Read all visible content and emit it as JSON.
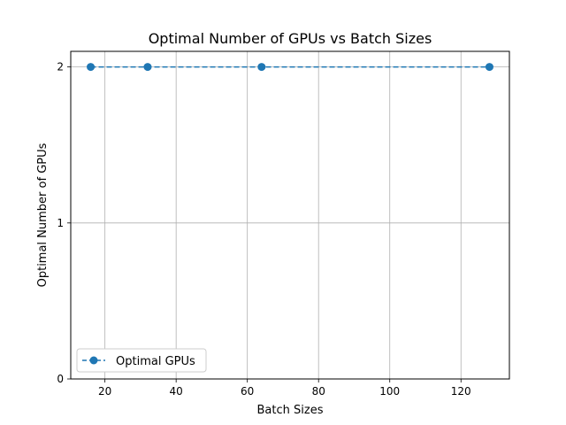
{
  "chart_data": {
    "type": "line",
    "title": "Optimal Number of GPUs vs Batch Sizes",
    "xlabel": "Batch Sizes",
    "ylabel": "Optimal Number of GPUs",
    "x": [
      16,
      32,
      64,
      128
    ],
    "series": [
      {
        "name": "Optimal GPUs",
        "values": [
          2,
          2,
          2,
          2
        ],
        "color": "#1f77b4",
        "line_style": "dashed",
        "marker": "circle"
      }
    ],
    "xlim": [
      10.4,
      133.6
    ],
    "ylim": [
      0,
      2.1
    ],
    "xticks": [
      20,
      40,
      60,
      80,
      100,
      120
    ],
    "yticks": [
      0,
      1,
      2
    ],
    "grid": true,
    "legend_position": "lower-left"
  }
}
